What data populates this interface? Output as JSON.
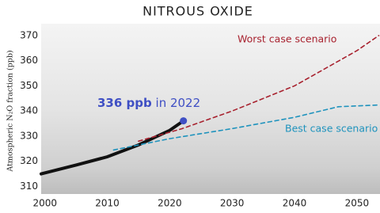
{
  "chart_data": {
    "type": "line",
    "title": "NITROUS OXIDE",
    "y_label": "Atmospheric N₂O fraction (ppb)",
    "annotation_parts": [
      "336 ppb",
      "in 2022"
    ],
    "xlim": [
      1999.4,
      2053.7
    ],
    "ylim": [
      307,
      374.7
    ],
    "xticks": [
      2000,
      2010,
      2020,
      2030,
      2040,
      2050
    ],
    "yticks": [
      310,
      320,
      330,
      340,
      350,
      360,
      370
    ],
    "series": [
      {
        "color": "#111111",
        "dashed": false,
        "x": [
          1999.4,
          2005,
          2010,
          2015,
          2020,
          2022.2
        ],
        "values": [
          315,
          318.5,
          321.8,
          326.5,
          332.3,
          336.1
        ],
        "highlight_last": true,
        "highlight_color": "#3f4fc4"
      },
      {
        "name": "Worst case scenario",
        "color": "#a8222f",
        "dashed": true,
        "x": [
          2015,
          2022,
          2030,
          2040,
          2050,
          2053.5
        ],
        "values": [
          328,
          333,
          340,
          350,
          364,
          370
        ]
      },
      {
        "name": "Best case scenario",
        "color": "#1f93bd",
        "dashed": true,
        "x": [
          2011,
          2020,
          2030,
          2040,
          2047,
          2053.5
        ],
        "values": [
          324.5,
          329,
          333,
          337.5,
          341.7,
          342.4
        ]
      }
    ]
  }
}
